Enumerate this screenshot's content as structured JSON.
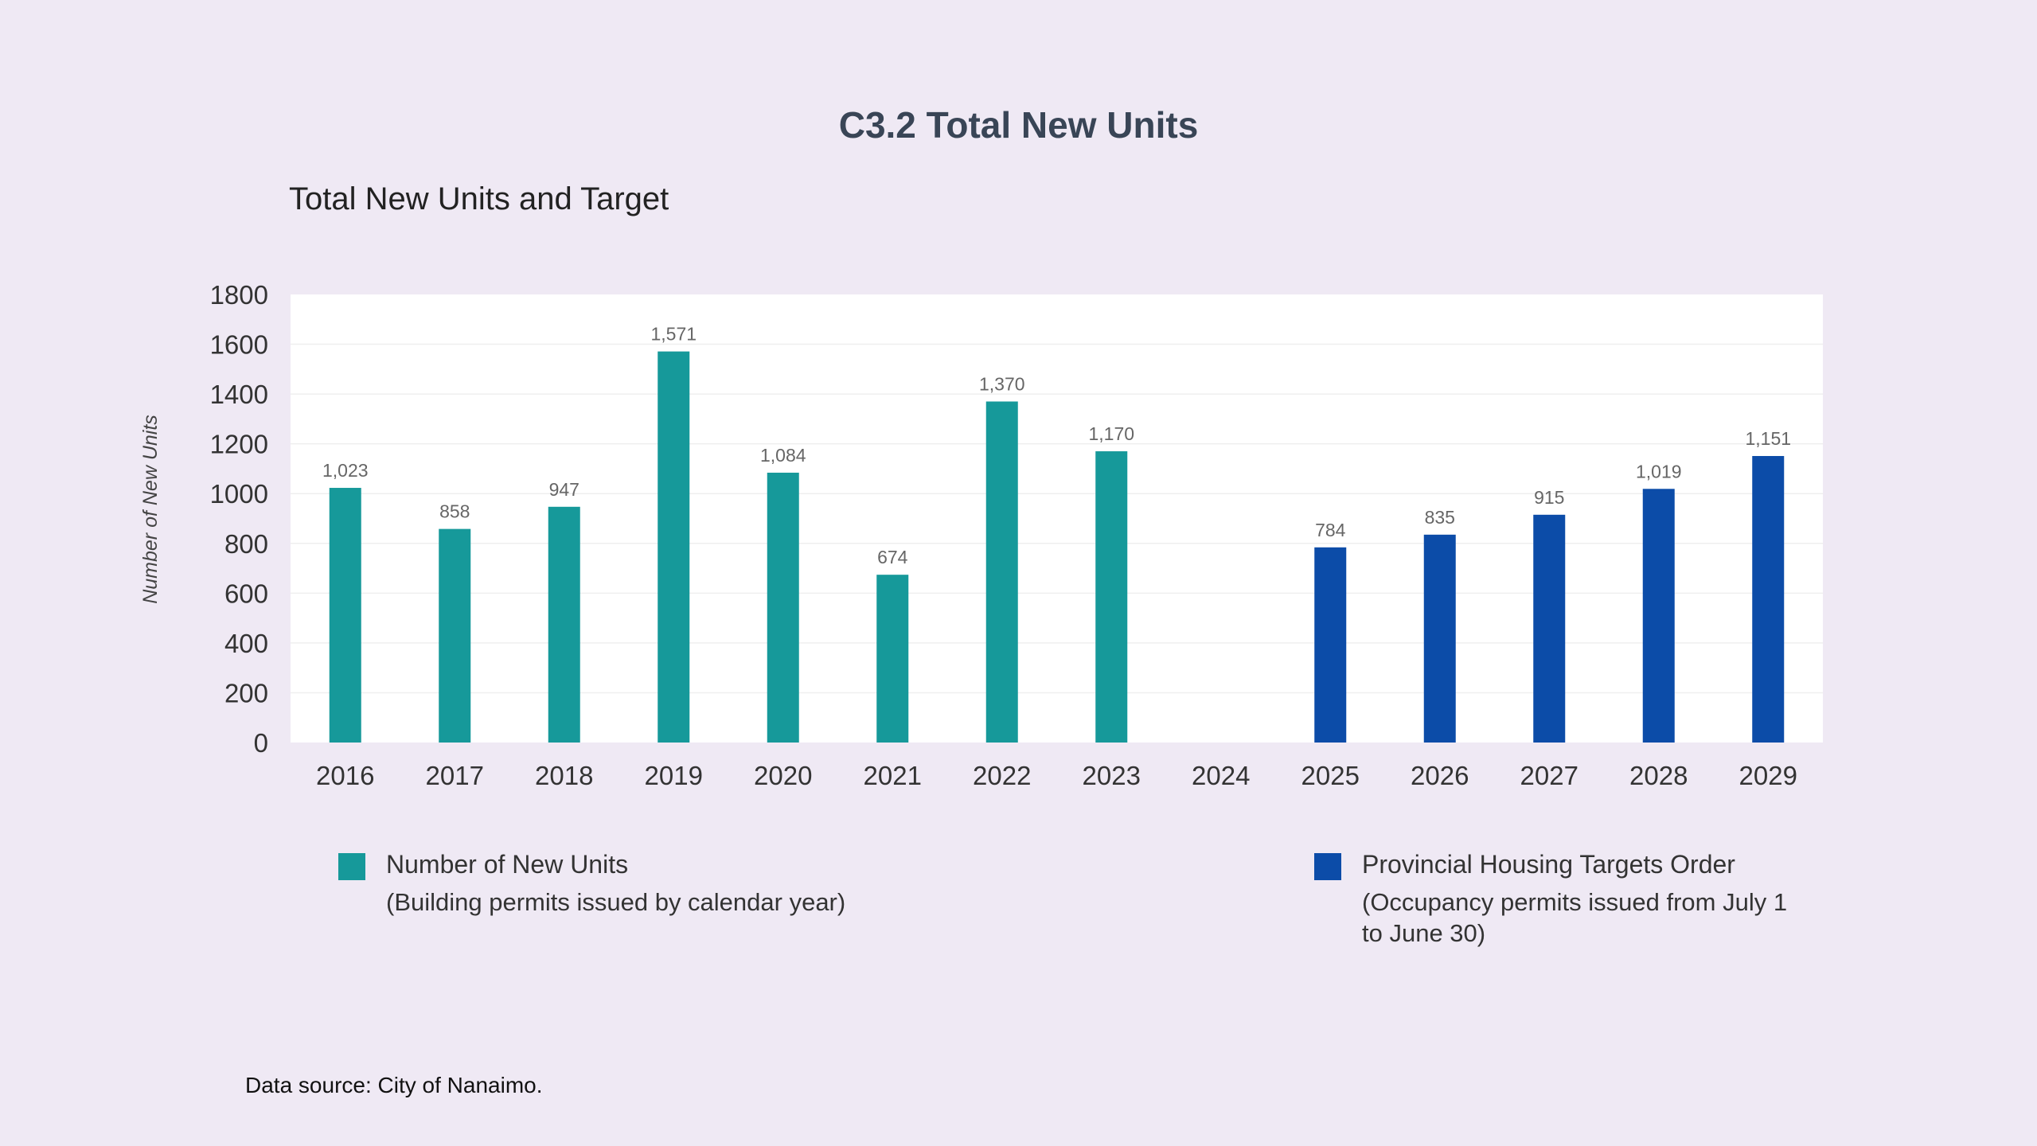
{
  "header": {
    "title": "C3.2 Total New Units"
  },
  "colors": {
    "actual": "#16999a",
    "target": "#0c4ca8",
    "background": "#efe9f4",
    "plot_background": "#ffffff"
  },
  "legend": {
    "actual": {
      "label": "Number of New Units",
      "note": "(Building permits issued by calendar year)"
    },
    "target": {
      "label": "Provincial Housing Targets Order",
      "note": "(Occupancy permits issued from July 1 to June 30)"
    }
  },
  "footer": {
    "source": "Data source: City of Nanaimo."
  },
  "chart_data": {
    "type": "bar",
    "title": "Total New Units and Target",
    "ylabel": "Number of New Units",
    "xlabel": "",
    "ylim": [
      0,
      1800
    ],
    "yticks": [
      0,
      200,
      400,
      600,
      800,
      1000,
      1200,
      1400,
      1600,
      1800
    ],
    "categories": [
      "2016",
      "2017",
      "2018",
      "2019",
      "2020",
      "2021",
      "2022",
      "2023",
      "2024",
      "2025",
      "2026",
      "2027",
      "2028",
      "2029"
    ],
    "series": [
      {
        "name": "Number of New Units",
        "values": [
          1023,
          858,
          947,
          1571,
          1084,
          674,
          1370,
          1170,
          null,
          null,
          null,
          null,
          null,
          null
        ],
        "labels": [
          "1,023",
          "858",
          "947",
          "1,571",
          "1,084",
          "674",
          "1,370",
          "1,170",
          null,
          null,
          null,
          null,
          null,
          null
        ]
      },
      {
        "name": "Provincial Housing Targets Order",
        "values": [
          null,
          null,
          null,
          null,
          null,
          null,
          null,
          null,
          null,
          784,
          835,
          915,
          1019,
          1151
        ],
        "labels": [
          null,
          null,
          null,
          null,
          null,
          null,
          null,
          null,
          null,
          "784",
          "835",
          "915",
          "1,019",
          "1,151"
        ]
      }
    ],
    "grid": true,
    "legend_position": "bottom"
  }
}
